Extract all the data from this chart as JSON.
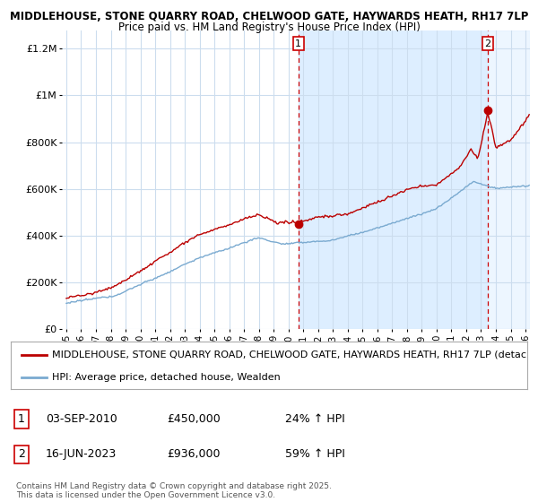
{
  "title": "MIDDLEHOUSE, STONE QUARRY ROAD, CHELWOOD GATE, HAYWARDS HEATH, RH17 7LP",
  "subtitle": "Price paid vs. HM Land Registry's House Price Index (HPI)",
  "ylabel_ticks": [
    "£0",
    "£200K",
    "£400K",
    "£600K",
    "£800K",
    "£1M",
    "£1.2M"
  ],
  "ytick_values": [
    0,
    200000,
    400000,
    600000,
    800000,
    1000000,
    1200000
  ],
  "ylim": [
    0,
    1280000
  ],
  "xlim_start": 1994.7,
  "xlim_end": 2026.3,
  "sale1_date": 2010.67,
  "sale1_price": 450000,
  "sale2_date": 2023.46,
  "sale2_price": 936000,
  "line_color_property": "#bb0000",
  "line_color_hpi": "#7aaad0",
  "shade_color": "#ddeeff",
  "legend_label_property": "MIDDLEHOUSE, STONE QUARRY ROAD, CHELWOOD GATE, HAYWARDS HEATH, RH17 7LP (detac",
  "legend_label_hpi": "HPI: Average price, detached house, Wealden",
  "annotation1_date": "03-SEP-2010",
  "annotation1_price": "£450,000",
  "annotation1_hpi": "24% ↑ HPI",
  "annotation2_date": "16-JUN-2023",
  "annotation2_price": "£936,000",
  "annotation2_hpi": "59% ↑ HPI",
  "footer": "Contains HM Land Registry data © Crown copyright and database right 2025.\nThis data is licensed under the Open Government Licence v3.0.",
  "background_color": "#ffffff",
  "grid_color": "#ccddee",
  "title_fontsize": 8.5,
  "subtitle_fontsize": 8.5,
  "tick_fontsize": 8,
  "legend_fontsize": 8,
  "annotation_fontsize": 9
}
